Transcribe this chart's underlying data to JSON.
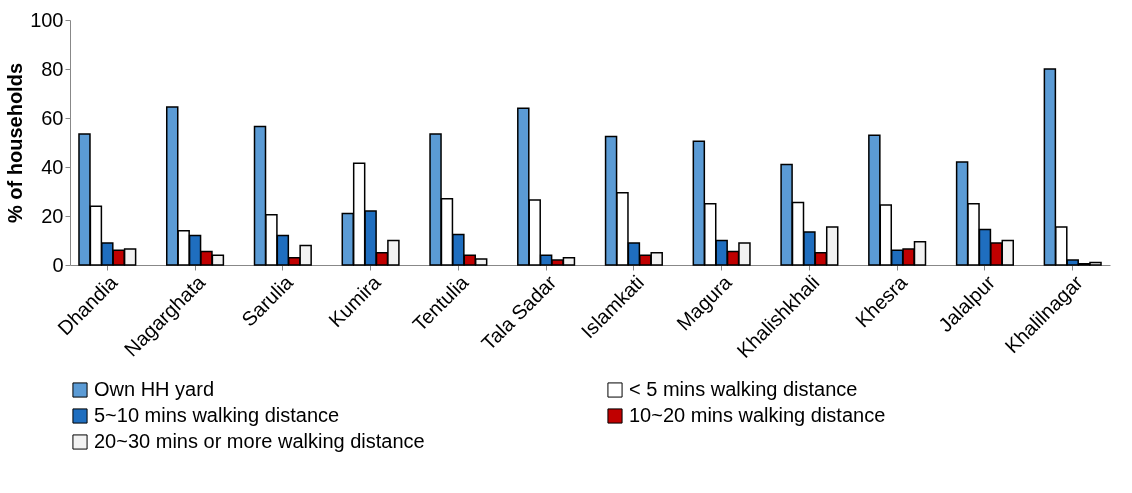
{
  "chart_data": {
    "type": "bar",
    "ylabel": "% of households",
    "categories": [
      "Dhandia",
      "Nagarghata",
      "Sarulia",
      "Kumira",
      "Tentulia",
      "Tala Sadar",
      "Islamkati",
      "Magura",
      "Khalishkhali",
      "Khesra",
      "Jalalpur",
      "Khalilnagar"
    ],
    "series": [
      {
        "name": "Own HH yard",
        "color": "#5b9bd5",
        "values": [
          53.5,
          64.5,
          56.5,
          21,
          53.5,
          64,
          52.5,
          50.5,
          41,
          53,
          42,
          80
        ]
      },
      {
        "name": "< 5 mins walking distance",
        "color": "#ffffff",
        "values": [
          24,
          14,
          20.5,
          41.5,
          27,
          26.5,
          29.5,
          25,
          25.5,
          24.5,
          25,
          15.5
        ]
      },
      {
        "name": "5~10 mins walking distance",
        "color": "#1f6ebf",
        "values": [
          9,
          12,
          12,
          22,
          12.5,
          4,
          9,
          10,
          13.5,
          6,
          14.5,
          2
        ]
      },
      {
        "name": "10~20 mins walking distance",
        "color": "#c00000",
        "values": [
          6,
          5.5,
          3,
          5,
          4,
          2,
          4,
          5.5,
          5,
          6.5,
          9,
          0.5
        ]
      },
      {
        "name": "20~30 mins or more walking distance",
        "color": "#f2f2f2",
        "values": [
          6.5,
          4,
          8,
          10,
          2.5,
          3,
          5,
          9,
          15.5,
          9.5,
          10,
          1
        ]
      }
    ],
    "ylim": [
      0,
      100
    ],
    "yticks": [
      0,
      20,
      40,
      60,
      80,
      100
    ],
    "grid": false,
    "legend": "bottom"
  }
}
